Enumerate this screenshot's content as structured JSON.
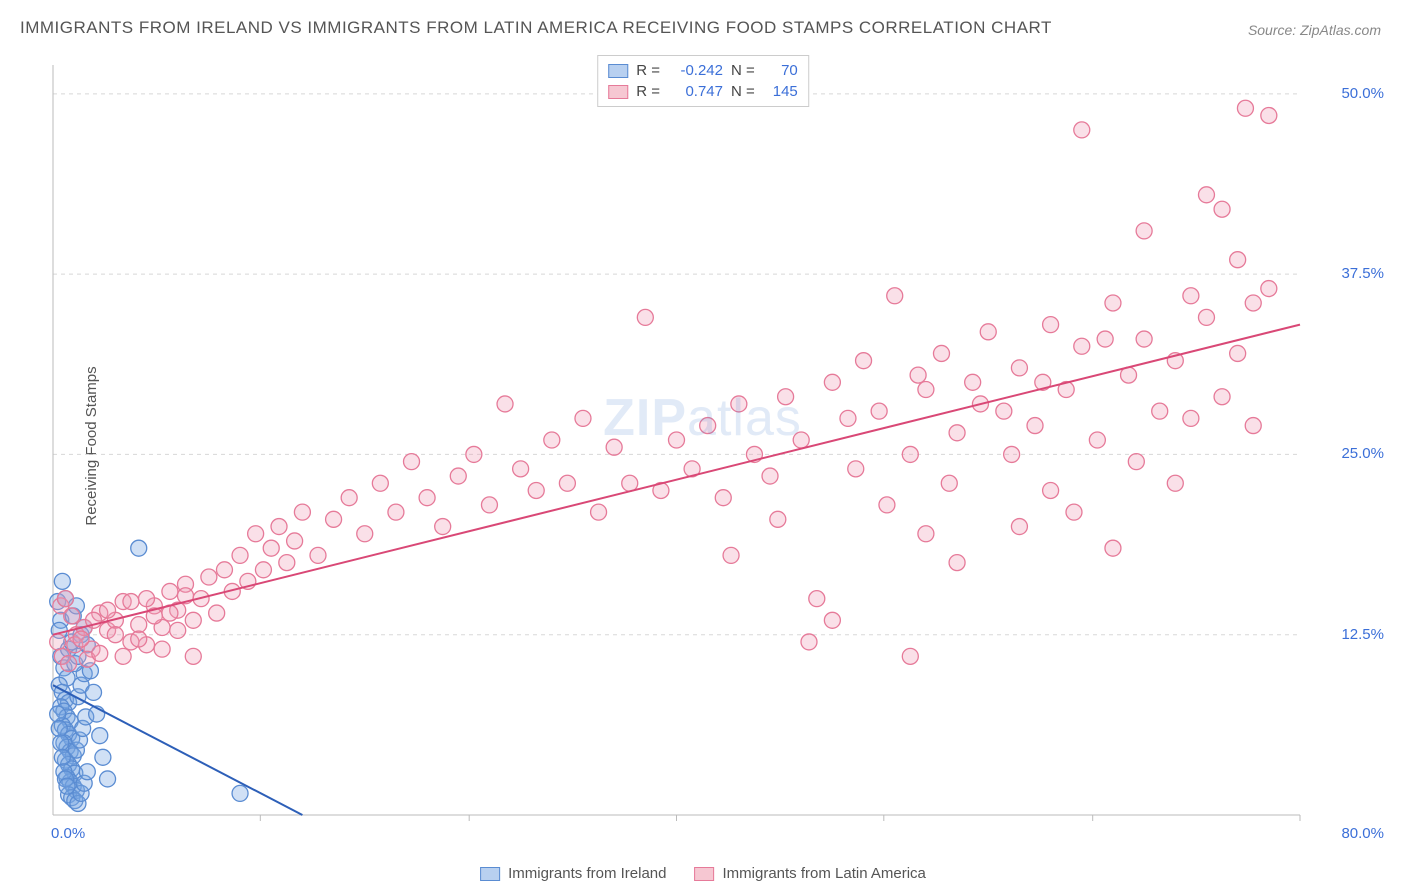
{
  "title": "IMMIGRANTS FROM IRELAND VS IMMIGRANTS FROM LATIN AMERICA RECEIVING FOOD STAMPS CORRELATION CHART",
  "source": "Source: ZipAtlas.com",
  "ylabel": "Receiving Food Stamps",
  "watermark_zip": "ZIP",
  "watermark_atlas": "atlas",
  "chart": {
    "type": "scatter",
    "background_color": "#ffffff",
    "grid_color": "#d8d8d8",
    "axis_color": "#bbbbbb",
    "text_color": "#555555",
    "value_color": "#3b6fd8",
    "xlim": [
      0,
      80
    ],
    "ylim": [
      0,
      52
    ],
    "x_origin_label": "0.0%",
    "x_max_label": "80.0%",
    "y_gridlines": [
      12.5,
      25.0,
      37.5,
      50.0
    ],
    "y_tick_labels": [
      "12.5%",
      "25.0%",
      "37.5%",
      "50.0%"
    ],
    "x_gridticks": [
      13.3,
      26.7,
      40,
      53.3,
      66.7,
      80
    ],
    "marker_radius": 8,
    "marker_stroke_width": 1.3,
    "trend_line_width": 2,
    "label_fontsize": 15,
    "title_fontsize": 17
  },
  "stats_legend": {
    "rows": [
      {
        "swatch_fill": "#b8d0f0",
        "swatch_border": "#5a8cd2",
        "r_label": "R =",
        "r_value": "-0.242",
        "n_label": "N =",
        "n_value": "70"
      },
      {
        "swatch_fill": "#f6c7d2",
        "swatch_border": "#e67a99",
        "r_label": "R =",
        "r_value": "0.747",
        "n_label": "N =",
        "n_value": "145"
      }
    ]
  },
  "bottom_legend": {
    "items": [
      {
        "swatch_fill": "#b8d0f0",
        "swatch_border": "#5a8cd2",
        "label": "Immigrants from Ireland"
      },
      {
        "swatch_fill": "#f6c7d2",
        "swatch_border": "#e67a99",
        "label": "Immigrants from Latin America"
      }
    ]
  },
  "series": [
    {
      "name": "ireland",
      "fill": "rgba(120,165,225,0.35)",
      "stroke": "#5a8cd2",
      "trend_stroke": "#2d5fb8",
      "trend": {
        "x1": 0,
        "y1": 9.0,
        "x2": 16,
        "y2": 0
      },
      "points": [
        [
          0.3,
          14.8
        ],
        [
          0.5,
          13.5
        ],
        [
          0.4,
          12.8
        ],
        [
          0.6,
          16.2
        ],
        [
          0.8,
          15.0
        ],
        [
          0.5,
          11.0
        ],
        [
          0.7,
          10.2
        ],
        [
          0.9,
          9.5
        ],
        [
          0.4,
          9.0
        ],
        [
          0.6,
          8.5
        ],
        [
          0.8,
          8.0
        ],
        [
          1.0,
          7.8
        ],
        [
          0.5,
          7.5
        ],
        [
          0.7,
          7.2
        ],
        [
          0.9,
          6.8
        ],
        [
          1.1,
          6.5
        ],
        [
          0.6,
          6.2
        ],
        [
          0.8,
          5.9
        ],
        [
          1.0,
          5.6
        ],
        [
          1.2,
          5.3
        ],
        [
          0.7,
          5.0
        ],
        [
          0.9,
          4.7
        ],
        [
          1.1,
          4.4
        ],
        [
          1.3,
          4.1
        ],
        [
          0.8,
          3.8
        ],
        [
          1.0,
          3.5
        ],
        [
          1.2,
          3.2
        ],
        [
          1.4,
          2.9
        ],
        [
          0.9,
          2.6
        ],
        [
          1.1,
          2.3
        ],
        [
          1.3,
          2.0
        ],
        [
          1.5,
          1.7
        ],
        [
          1.0,
          1.4
        ],
        [
          1.2,
          1.2
        ],
        [
          1.4,
          1.0
        ],
        [
          1.6,
          0.8
        ],
        [
          1.8,
          1.5
        ],
        [
          2.0,
          2.2
        ],
        [
          2.2,
          3.0
        ],
        [
          1.5,
          4.5
        ],
        [
          1.7,
          5.2
        ],
        [
          1.9,
          6.0
        ],
        [
          2.1,
          6.8
        ],
        [
          1.6,
          8.2
        ],
        [
          1.8,
          9.0
        ],
        [
          2.0,
          9.8
        ],
        [
          0.3,
          7.0
        ],
        [
          0.4,
          6.0
        ],
        [
          0.5,
          5.0
        ],
        [
          0.6,
          4.0
        ],
        [
          0.7,
          3.0
        ],
        [
          0.8,
          2.5
        ],
        [
          0.9,
          2.0
        ],
        [
          1.0,
          11.5
        ],
        [
          1.2,
          12.0
        ],
        [
          1.4,
          10.5
        ],
        [
          1.6,
          11.0
        ],
        [
          1.8,
          12.5
        ],
        [
          2.0,
          13.0
        ],
        [
          2.2,
          11.8
        ],
        [
          2.4,
          10.0
        ],
        [
          2.6,
          8.5
        ],
        [
          2.8,
          7.0
        ],
        [
          3.0,
          5.5
        ],
        [
          3.2,
          4.0
        ],
        [
          3.5,
          2.5
        ],
        [
          5.5,
          18.5
        ],
        [
          12.0,
          1.5
        ],
        [
          1.3,
          13.8
        ],
        [
          1.5,
          14.5
        ]
      ]
    },
    {
      "name": "latin_america",
      "fill": "rgba(240,160,185,0.32)",
      "stroke": "#e67a99",
      "trend_stroke": "#d94876",
      "trend": {
        "x1": 0,
        "y1": 12.5,
        "x2": 80,
        "y2": 34.0
      },
      "points": [
        [
          0.5,
          14.5
        ],
        [
          0.8,
          15.0
        ],
        [
          1.2,
          13.8
        ],
        [
          1.5,
          12.5
        ],
        [
          2.0,
          13.0
        ],
        [
          2.5,
          11.5
        ],
        [
          3.0,
          14.0
        ],
        [
          3.5,
          12.8
        ],
        [
          4.0,
          13.5
        ],
        [
          4.5,
          14.8
        ],
        [
          5.0,
          12.0
        ],
        [
          5.5,
          13.2
        ],
        [
          6.0,
          11.8
        ],
        [
          6.5,
          14.5
        ],
        [
          7.0,
          13.0
        ],
        [
          7.5,
          15.5
        ],
        [
          8.0,
          14.2
        ],
        [
          8.5,
          16.0
        ],
        [
          9.0,
          13.5
        ],
        [
          9.5,
          15.0
        ],
        [
          10.0,
          16.5
        ],
        [
          10.5,
          14.0
        ],
        [
          11.0,
          17.0
        ],
        [
          11.5,
          15.5
        ],
        [
          12.0,
          18.0
        ],
        [
          12.5,
          16.2
        ],
        [
          13.0,
          19.5
        ],
        [
          13.5,
          17.0
        ],
        [
          14.0,
          18.5
        ],
        [
          14.5,
          20.0
        ],
        [
          15.0,
          17.5
        ],
        [
          15.5,
          19.0
        ],
        [
          16.0,
          21.0
        ],
        [
          17.0,
          18.0
        ],
        [
          18.0,
          20.5
        ],
        [
          19.0,
          22.0
        ],
        [
          20.0,
          19.5
        ],
        [
          21.0,
          23.0
        ],
        [
          22.0,
          21.0
        ],
        [
          23.0,
          24.5
        ],
        [
          24.0,
          22.0
        ],
        [
          25.0,
          20.0
        ],
        [
          26.0,
          23.5
        ],
        [
          27.0,
          25.0
        ],
        [
          28.0,
          21.5
        ],
        [
          29.0,
          28.5
        ],
        [
          30.0,
          24.0
        ],
        [
          31.0,
          22.5
        ],
        [
          32.0,
          26.0
        ],
        [
          33.0,
          23.0
        ],
        [
          34.0,
          27.5
        ],
        [
          35.0,
          21.0
        ],
        [
          36.0,
          25.5
        ],
        [
          37.0,
          23.0
        ],
        [
          38.0,
          34.5
        ],
        [
          39.0,
          22.5
        ],
        [
          40.0,
          26.0
        ],
        [
          41.0,
          24.0
        ],
        [
          42.0,
          27.0
        ],
        [
          43.0,
          22.0
        ],
        [
          44.0,
          28.5
        ],
        [
          45.0,
          25.0
        ],
        [
          46.0,
          23.5
        ],
        [
          47.0,
          29.0
        ],
        [
          48.0,
          26.0
        ],
        [
          49.0,
          15.0
        ],
        [
          50.0,
          30.0
        ],
        [
          50.0,
          13.5
        ],
        [
          51.0,
          27.5
        ],
        [
          52.0,
          31.5
        ],
        [
          53.0,
          28.0
        ],
        [
          54.0,
          36.0
        ],
        [
          55.0,
          25.0
        ],
        [
          55.0,
          11.0
        ],
        [
          56.0,
          19.5
        ],
        [
          56.0,
          29.5
        ],
        [
          57.0,
          32.0
        ],
        [
          58.0,
          26.5
        ],
        [
          58.0,
          17.5
        ],
        [
          59.0,
          30.0
        ],
        [
          60.0,
          33.5
        ],
        [
          61.0,
          28.0
        ],
        [
          62.0,
          20.0
        ],
        [
          62.0,
          31.0
        ],
        [
          63.0,
          27.0
        ],
        [
          64.0,
          34.0
        ],
        [
          64.0,
          22.5
        ],
        [
          65.0,
          29.5
        ],
        [
          66.0,
          47.5
        ],
        [
          66.0,
          32.5
        ],
        [
          67.0,
          26.0
        ],
        [
          68.0,
          35.5
        ],
        [
          68.0,
          18.5
        ],
        [
          69.0,
          30.5
        ],
        [
          70.0,
          40.5
        ],
        [
          70.0,
          33.0
        ],
        [
          71.0,
          28.0
        ],
        [
          72.0,
          31.5
        ],
        [
          72.0,
          23.0
        ],
        [
          73.0,
          36.0
        ],
        [
          73.0,
          27.5
        ],
        [
          74.0,
          43.0
        ],
        [
          74.0,
          34.5
        ],
        [
          75.0,
          29.0
        ],
        [
          75.0,
          42.0
        ],
        [
          76.0,
          38.5
        ],
        [
          76.0,
          32.0
        ],
        [
          76.5,
          49.0
        ],
        [
          77.0,
          35.5
        ],
        [
          77.0,
          27.0
        ],
        [
          78.0,
          48.5
        ],
        [
          78.0,
          36.5
        ],
        [
          0.3,
          12.0
        ],
        [
          0.6,
          11.0
        ],
        [
          1.0,
          10.5
        ],
        [
          1.4,
          11.8
        ],
        [
          1.8,
          12.2
        ],
        [
          2.2,
          10.8
        ],
        [
          2.6,
          13.5
        ],
        [
          3.0,
          11.2
        ],
        [
          3.5,
          14.2
        ],
        [
          4.0,
          12.5
        ],
        [
          4.5,
          11.0
        ],
        [
          5.0,
          14.8
        ],
        [
          5.5,
          12.2
        ],
        [
          6.0,
          15.0
        ],
        [
          6.5,
          13.8
        ],
        [
          7.0,
          11.5
        ],
        [
          7.5,
          14.0
        ],
        [
          8.0,
          12.8
        ],
        [
          8.5,
          15.2
        ],
        [
          9.0,
          11.0
        ],
        [
          43.5,
          18.0
        ],
        [
          46.5,
          20.5
        ],
        [
          48.5,
          12.0
        ],
        [
          51.5,
          24.0
        ],
        [
          53.5,
          21.5
        ],
        [
          55.5,
          30.5
        ],
        [
          57.5,
          23.0
        ],
        [
          59.5,
          28.5
        ],
        [
          61.5,
          25.0
        ],
        [
          63.5,
          30.0
        ],
        [
          65.5,
          21.0
        ],
        [
          67.5,
          33.0
        ],
        [
          69.5,
          24.5
        ]
      ]
    }
  ]
}
